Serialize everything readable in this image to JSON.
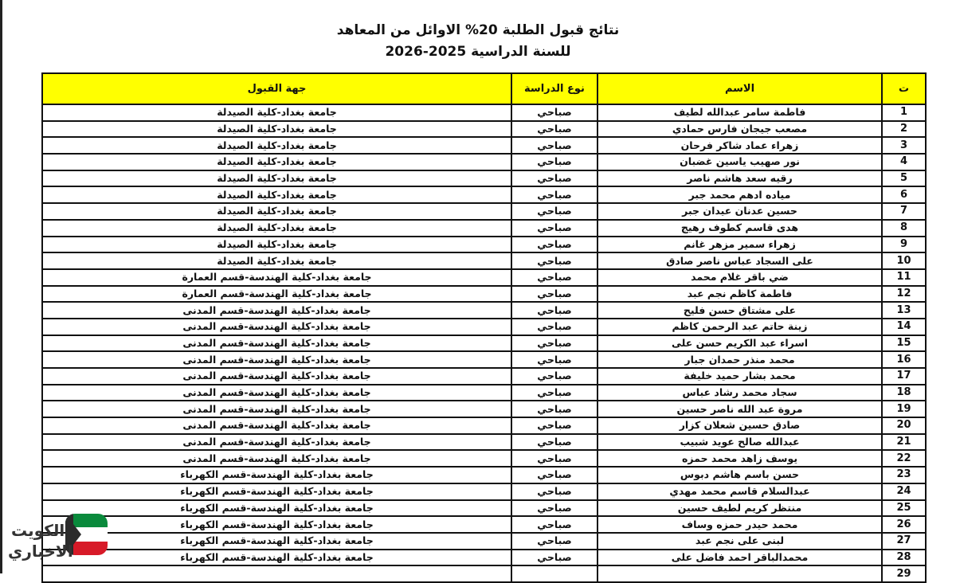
{
  "title_line1": "نتائج قبول الطلبة 20% الاوائل من المعاهد",
  "title_line2": "للسنة الدراسية 2025-2026",
  "table": {
    "headers": {
      "num": "ت",
      "name": "الاسم",
      "type": "نوع الدراسة",
      "dest": "جهة القبول"
    },
    "rows": [
      {
        "num": "1",
        "name": "فاطمة سامر عبدالله لطيف",
        "type": "صباحي",
        "dest": "جامعة بغداد-كلية الصيدلة"
      },
      {
        "num": "2",
        "name": "مصعب جيجان فارس حمادي",
        "type": "صباحي",
        "dest": "جامعة بغداد-كلية الصيدلة"
      },
      {
        "num": "3",
        "name": "زهراء عماد شاكر فرحان",
        "type": "صباحي",
        "dest": "جامعة بغداد-كلية الصيدلة"
      },
      {
        "num": "4",
        "name": "نور صهيب ياسين غضبان",
        "type": "صباحي",
        "dest": "جامعة بغداد-كلية الصيدلة"
      },
      {
        "num": "5",
        "name": "رقيه سعد هاشم ناصر",
        "type": "صباحي",
        "dest": "جامعة بغداد-كلية الصيدلة"
      },
      {
        "num": "6",
        "name": "مياده ادهم محمد جبر",
        "type": "صباحي",
        "dest": "جامعة بغداد-كلية الصيدلة"
      },
      {
        "num": "7",
        "name": "حسين عدنان عيدان جبر",
        "type": "صباحي",
        "dest": "جامعة بغداد-كلية الصيدلة"
      },
      {
        "num": "8",
        "name": "هدى قاسم كطوف رهيج",
        "type": "صباحي",
        "dest": "جامعة بغداد-كلية الصيدلة"
      },
      {
        "num": "9",
        "name": "زهراء سمير مزهر غانم",
        "type": "صباحي",
        "dest": "جامعة بغداد-كلية الصيدلة"
      },
      {
        "num": "10",
        "name": "على السجاد عباس ناصر صادق",
        "type": "صباحي",
        "dest": "جامعة بغداد-كلية الصيدلة"
      },
      {
        "num": "11",
        "name": "ضي باقر غلام محمد",
        "type": "صباحي",
        "dest": "جامعة بغداد-كلية الهندسة-قسم العمارة"
      },
      {
        "num": "12",
        "name": "فاطمة كاظم نجم عبد",
        "type": "صباحي",
        "dest": "جامعة بغداد-كلية الهندسة-قسم العمارة"
      },
      {
        "num": "13",
        "name": "على مشتاق حسن فليح",
        "type": "صباحي",
        "dest": "جامعة بغداد-كلية الهندسة-قسم المدنى"
      },
      {
        "num": "14",
        "name": "زينة حاتم عبد الرحمن كاظم",
        "type": "صباحي",
        "dest": "جامعة بغداد-كلية الهندسة-قسم المدنى"
      },
      {
        "num": "15",
        "name": "اسراء عبد الكريم حسن على",
        "type": "صباحي",
        "dest": "جامعة بغداد-كلية الهندسة-قسم المدنى"
      },
      {
        "num": "16",
        "name": "محمد منذر حمدان جبار",
        "type": "صباحي",
        "dest": "جامعة بغداد-كلية الهندسة-قسم المدنى"
      },
      {
        "num": "17",
        "name": "محمد بشار حميد خليفة",
        "type": "صباحي",
        "dest": "جامعة بغداد-كلية الهندسة-قسم المدنى"
      },
      {
        "num": "18",
        "name": "سجاد محمد رشاد عباس",
        "type": "صباحي",
        "dest": "جامعة بغداد-كلية الهندسة-قسم المدنى"
      },
      {
        "num": "19",
        "name": "مروة عبد الله ناصر حسين",
        "type": "صباحي",
        "dest": "جامعة بغداد-كلية الهندسة-قسم المدنى"
      },
      {
        "num": "20",
        "name": "صادق حسين شعلان كزار",
        "type": "صباحي",
        "dest": "جامعة بغداد-كلية الهندسة-قسم المدنى"
      },
      {
        "num": "21",
        "name": "عبدالله صالح عويد شبيب",
        "type": "صباحي",
        "dest": "جامعة بغداد-كلية الهندسة-قسم المدنى"
      },
      {
        "num": "22",
        "name": "يوسف زاهد محمد حمزه",
        "type": "صباحي",
        "dest": "جامعة بغداد-كلية الهندسة-قسم المدنى"
      },
      {
        "num": "23",
        "name": "حسن باسم هاشم دبوس",
        "type": "صباحي",
        "dest": "جامعة بغداد-كلية الهندسة-قسم الكهرباء"
      },
      {
        "num": "24",
        "name": "عبدالسلام قاسم محمد مهدي",
        "type": "صباحي",
        "dest": "جامعة بغداد-كلية الهندسة-قسم الكهرباء"
      },
      {
        "num": "25",
        "name": "منتظر كريم لطيف حسين",
        "type": "صباحي",
        "dest": "جامعة بغداد-كلية الهندسة-قسم الكهرباء"
      },
      {
        "num": "26",
        "name": "محمد حيدر حمزه وساف",
        "type": "صباحي",
        "dest": "جامعة بغداد-كلية الهندسة-قسم الكهرباء"
      },
      {
        "num": "27",
        "name": "لبنى على نجم عبد",
        "type": "صباحي",
        "dest": "جامعة بغداد-كلية الهندسة-قسم الكهرباء"
      },
      {
        "num": "28",
        "name": "محمدالباقر احمد فاضل على",
        "type": "صباحي",
        "dest": "جامعة بغداد-كلية الهندسة-قسم الكهرباء"
      },
      {
        "num": "29",
        "name": "",
        "type": "",
        "dest": ""
      }
    ]
  },
  "watermark": {
    "line1": "الكويت",
    "line2": "الاخباري"
  },
  "colors": {
    "header_bg": "#ffff00",
    "flag_green": "#0a8a3c",
    "flag_red": "#d71a28",
    "flag_black": "#2b2b2b"
  }
}
